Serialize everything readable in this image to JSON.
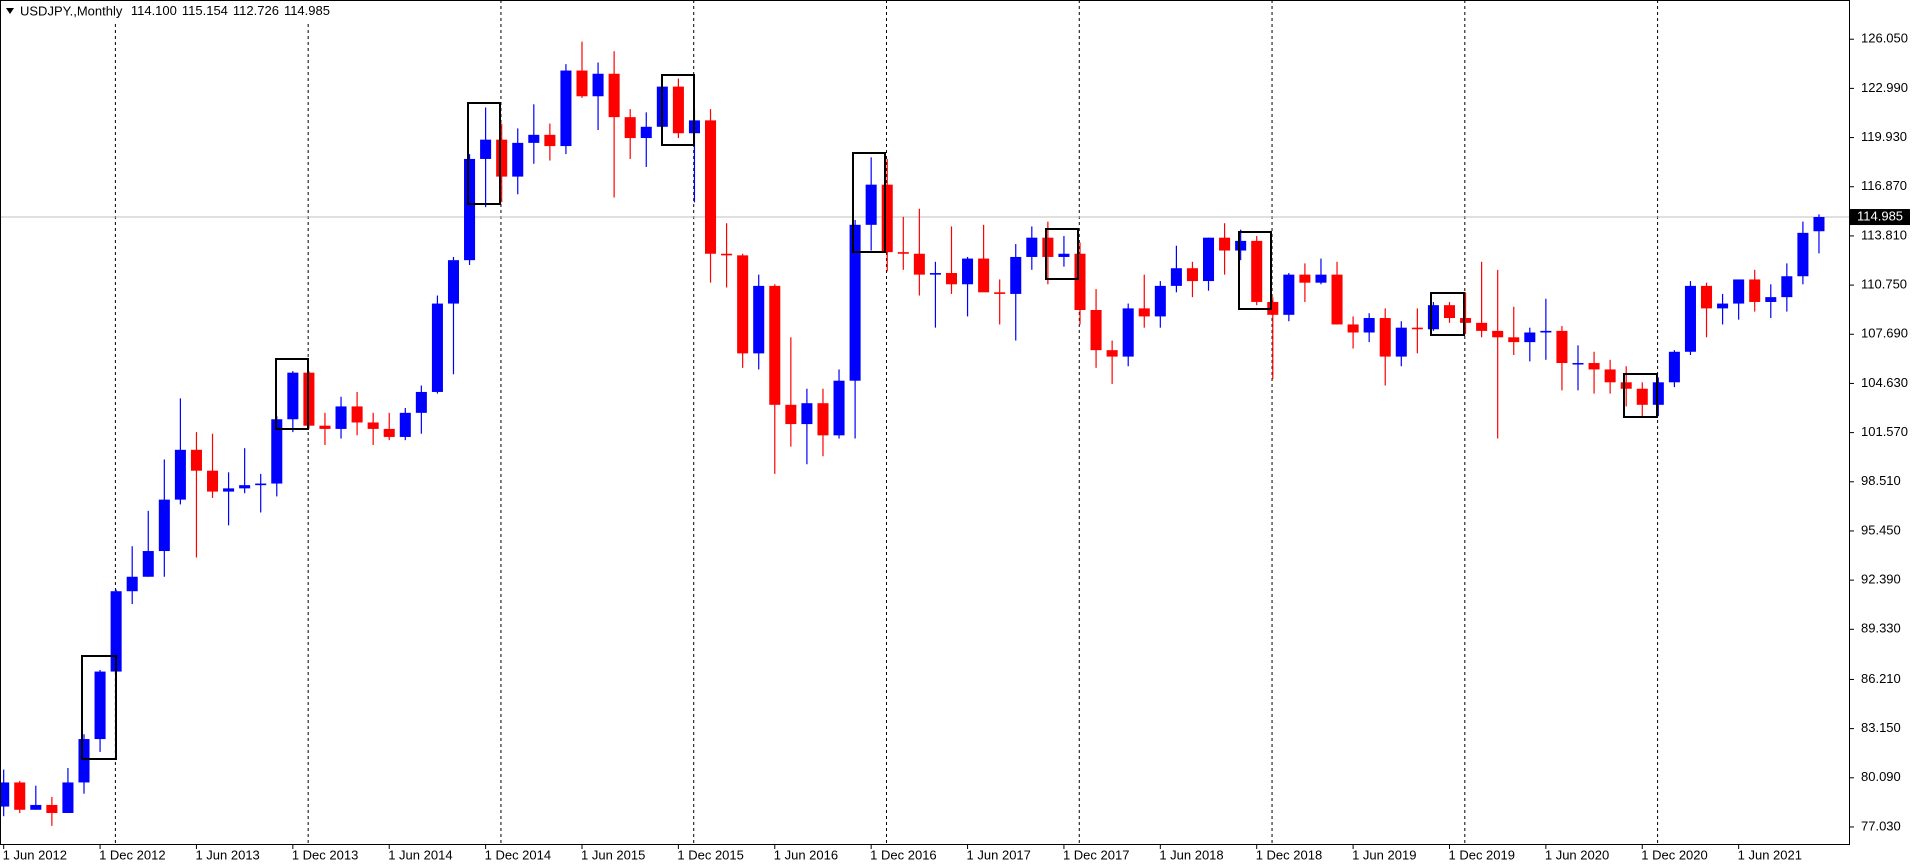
{
  "chart_data": {
    "type": "candlestick",
    "title": "USDJPY.,Monthly",
    "header_values": [
      "114.100",
      "115.154",
      "112.726",
      "114.985"
    ],
    "bull_color": "#0000ff",
    "bear_color": "#ff0000",
    "grid": true,
    "categories": [
      "1 Jun 2012",
      null,
      null,
      null,
      null,
      null,
      "1 Dec 2012",
      null,
      null,
      null,
      null,
      null,
      "1 Jun 2013",
      null,
      null,
      null,
      null,
      null,
      "1 Dec 2013",
      null,
      null,
      null,
      null,
      null,
      "1 Jun 2014",
      null,
      null,
      null,
      null,
      null,
      "1 Dec 2014",
      null,
      null,
      null,
      null,
      null,
      "1 Jun 2015",
      null,
      null,
      null,
      null,
      null,
      "1 Dec 2015",
      null,
      null,
      null,
      null,
      null,
      "1 Jun 2016",
      null,
      null,
      null,
      null,
      null,
      "1 Dec 2016",
      null,
      null,
      null,
      null,
      null,
      "1 Jun 2017",
      null,
      null,
      null,
      null,
      null,
      "1 Dec 2017",
      null,
      null,
      null,
      null,
      null,
      "1 Jun 2018",
      null,
      null,
      null,
      null,
      null,
      "1 Dec 2018",
      null,
      null,
      null,
      null,
      null,
      "1 Jun 2019",
      null,
      null,
      null,
      null,
      null,
      "1 Dec 2019",
      null,
      null,
      null,
      null,
      null,
      "1 Jun 2020",
      null,
      null,
      null,
      null,
      null,
      "1 Dec 2020",
      null,
      null,
      null,
      null,
      null,
      "1 Jun 2021",
      null,
      null,
      null,
      null,
      null
    ],
    "open": [
      78.3,
      79.8,
      78.1,
      78.4,
      77.9,
      79.8,
      82.5,
      86.7,
      91.7,
      92.6,
      94.2,
      97.4,
      100.5,
      99.2,
      97.9,
      98.1,
      98.3,
      98.4,
      102.4,
      105.3,
      102.0,
      101.8,
      103.2,
      102.2,
      101.8,
      101.3,
      102.8,
      104.1,
      109.6,
      112.3,
      118.6,
      119.8,
      117.5,
      119.6,
      120.1,
      119.4,
      124.1,
      122.5,
      123.9,
      121.2,
      119.9,
      120.6,
      123.1,
      120.2,
      121.0,
      112.7,
      112.6,
      106.5,
      110.7,
      103.3,
      102.1,
      103.4,
      101.4,
      104.8,
      114.5,
      117.0,
      112.8,
      112.7,
      111.4,
      111.5,
      110.8,
      112.4,
      110.3,
      110.2,
      112.5,
      113.7,
      112.5,
      112.7,
      109.2,
      106.7,
      106.3,
      109.3,
      108.8,
      110.7,
      111.8,
      111.0,
      113.7,
      112.9,
      113.5,
      109.7,
      108.9,
      111.4,
      110.9,
      111.4,
      108.3,
      107.8,
      108.7,
      106.3,
      108.1,
      108.0,
      109.5,
      108.7,
      108.4,
      107.9,
      107.5,
      107.2,
      107.8,
      107.9,
      105.9,
      105.9,
      105.5,
      104.7,
      104.3,
      103.3,
      104.7,
      106.6,
      110.7,
      109.3,
      109.6,
      111.1,
      109.7,
      110.0,
      111.3,
      114.1
    ],
    "high": [
      80.6,
      79.9,
      79.6,
      78.9,
      80.7,
      82.8,
      86.8,
      91.8,
      94.5,
      96.7,
      99.9,
      103.7,
      101.6,
      101.5,
      99.1,
      100.6,
      99.0,
      102.6,
      105.4,
      105.4,
      102.8,
      103.8,
      104.1,
      102.8,
      102.8,
      103.1,
      104.5,
      110.1,
      112.5,
      118.9,
      121.8,
      120.8,
      120.5,
      122.0,
      120.8,
      124.5,
      125.9,
      124.6,
      125.3,
      121.7,
      121.5,
      123.8,
      123.6,
      121.7,
      121.7,
      114.6,
      112.7,
      111.4,
      110.8,
      107.5,
      104.3,
      104.3,
      105.5,
      114.8,
      118.7,
      118.6,
      115.0,
      115.5,
      112.2,
      114.4,
      112.5,
      114.5,
      111.1,
      113.3,
      114.4,
      114.7,
      113.8,
      113.4,
      110.5,
      107.3,
      109.6,
      111.4,
      111.0,
      113.2,
      112.2,
      113.7,
      114.6,
      114.2,
      113.8,
      110.0,
      111.5,
      112.1,
      112.4,
      112.2,
      108.8,
      109.0,
      109.3,
      108.5,
      109.3,
      109.7,
      109.7,
      110.3,
      112.2,
      111.7,
      109.4,
      108.1,
      109.9,
      108.2,
      107.0,
      106.6,
      106.1,
      105.7,
      104.7,
      105.0,
      106.7,
      111.0,
      110.9,
      110.2,
      111.1,
      111.7,
      110.8,
      112.1,
      114.7,
      115.154
    ],
    "low": [
      77.7,
      77.9,
      78.1,
      77.1,
      77.9,
      79.1,
      81.7,
      86.5,
      90.9,
      92.6,
      92.6,
      97.1,
      93.8,
      97.5,
      95.8,
      97.8,
      96.6,
      97.6,
      101.6,
      101.8,
      100.8,
      101.2,
      101.4,
      100.8,
      101.1,
      101.1,
      101.5,
      104.0,
      105.2,
      112.0,
      115.6,
      115.9,
      116.4,
      118.3,
      118.5,
      118.9,
      122.4,
      120.4,
      116.2,
      118.6,
      118.1,
      120.3,
      119.9,
      115.9,
      110.9,
      110.6,
      105.6,
      105.5,
      99.0,
      100.7,
      99.6,
      100.1,
      101.2,
      101.2,
      112.9,
      111.6,
      111.7,
      110.1,
      108.1,
      110.2,
      108.8,
      110.6,
      108.3,
      107.3,
      111.7,
      110.8,
      111.9,
      108.3,
      105.6,
      104.6,
      105.7,
      108.1,
      108.1,
      110.3,
      110.0,
      110.4,
      111.4,
      112.3,
      109.5,
      104.9,
      108.5,
      109.7,
      110.8,
      108.3,
      106.8,
      107.2,
      104.5,
      105.7,
      106.5,
      107.9,
      108.4,
      107.7,
      107.5,
      101.2,
      106.4,
      106.0,
      106.1,
      104.2,
      104.2,
      104.0,
      104.0,
      103.2,
      102.6,
      102.6,
      104.4,
      106.4,
      107.5,
      108.3,
      108.6,
      109.1,
      108.7,
      109.1,
      110.8,
      112.726
    ],
    "close": [
      79.8,
      78.1,
      78.4,
      77.9,
      79.8,
      82.5,
      86.7,
      91.7,
      92.6,
      94.2,
      97.4,
      100.5,
      99.2,
      97.9,
      98.1,
      98.3,
      98.4,
      102.4,
      105.3,
      102.0,
      101.8,
      103.2,
      102.2,
      101.8,
      101.3,
      102.8,
      104.1,
      109.6,
      112.3,
      118.6,
      119.8,
      117.5,
      119.6,
      120.1,
      119.4,
      124.1,
      122.5,
      123.9,
      121.2,
      119.9,
      120.6,
      123.1,
      120.2,
      121.0,
      112.7,
      112.6,
      106.5,
      110.7,
      103.3,
      102.1,
      103.4,
      101.4,
      104.8,
      114.5,
      117.0,
      112.8,
      112.7,
      111.4,
      111.5,
      110.8,
      112.4,
      110.3,
      110.2,
      112.5,
      113.7,
      112.5,
      112.7,
      109.2,
      106.7,
      106.3,
      109.3,
      108.8,
      110.7,
      111.8,
      111.0,
      113.7,
      112.9,
      113.5,
      109.7,
      108.9,
      111.4,
      110.9,
      111.4,
      108.3,
      107.8,
      108.7,
      106.3,
      108.1,
      108.0,
      109.5,
      108.7,
      108.4,
      107.9,
      107.5,
      107.2,
      107.8,
      107.9,
      105.9,
      105.9,
      105.5,
      104.7,
      104.3,
      103.3,
      104.7,
      106.6,
      110.7,
      109.3,
      109.6,
      111.1,
      109.7,
      110.0,
      111.3,
      114.0,
      114.985
    ],
    "current_price": {
      "value": 114.985,
      "label": "114.985"
    },
    "ylim": [
      75.97,
      128.49
    ],
    "yticks": [
      {
        "value": 77.03,
        "label": "77.030"
      },
      {
        "value": 80.09,
        "label": "80.090"
      },
      {
        "value": 83.15,
        "label": "83.150"
      },
      {
        "value": 86.21,
        "label": "86.210"
      },
      {
        "value": 89.33,
        "label": "89.330"
      },
      {
        "value": 92.39,
        "label": "92.390"
      },
      {
        "value": 95.45,
        "label": "95.450"
      },
      {
        "value": 98.51,
        "label": "98.510"
      },
      {
        "value": 101.57,
        "label": "101.570"
      },
      {
        "value": 104.63,
        "label": "104.630"
      },
      {
        "value": 107.69,
        "label": "107.690"
      },
      {
        "value": 110.75,
        "label": "110.750"
      },
      {
        "value": 113.81,
        "label": "113.810"
      },
      {
        "value": 116.87,
        "label": "116.870"
      },
      {
        "value": 119.93,
        "label": "119.930"
      },
      {
        "value": 122.99,
        "label": "122.990"
      },
      {
        "value": 126.05,
        "label": "126.050"
      }
    ]
  }
}
